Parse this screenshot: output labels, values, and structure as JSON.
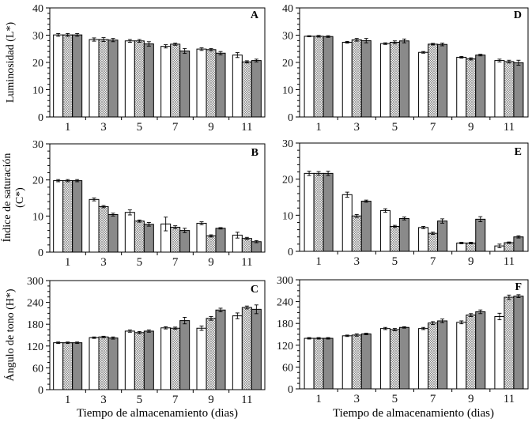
{
  "figure": {
    "x_axis_title": "Tiempo de almacenamiento (dias)",
    "colors": {
      "background": "#ffffff",
      "axis": "#000000",
      "white_bar_fill": "#ffffff",
      "gray_bar_fill": "#8a8a8a",
      "hatch_line": "#777777",
      "bar_border": "#000000"
    },
    "bar_styles": [
      {
        "name": "white-bar"
      },
      {
        "name": "hatched-bar"
      },
      {
        "name": "gray-bar"
      }
    ]
  },
  "chart_data": [
    {
      "type": "bar",
      "panel_label": "A",
      "ylabel_lines": [
        "Luminosidad (L*)"
      ],
      "xlabel": "",
      "ylim": [
        0,
        40
      ],
      "yticks": [
        0,
        10,
        20,
        30,
        40
      ],
      "minor_step": 2,
      "categories": [
        "1",
        "3",
        "5",
        "7",
        "9",
        "11"
      ],
      "series": [
        {
          "name": "white",
          "values": [
            30.1,
            28.4,
            27.9,
            25.9,
            24.9,
            22.7
          ],
          "errors": [
            0.5,
            0.6,
            0.5,
            0.6,
            0.5,
            0.9
          ]
        },
        {
          "name": "hatched",
          "values": [
            30.1,
            28.4,
            27.9,
            26.7,
            24.7,
            20.2
          ],
          "errors": [
            0.5,
            0.7,
            0.5,
            0.4,
            0.4,
            0.4
          ]
        },
        {
          "name": "gray",
          "values": [
            30.1,
            28.2,
            26.8,
            24.2,
            23.4,
            20.7
          ],
          "errors": [
            0.5,
            0.6,
            0.8,
            0.9,
            0.6,
            0.5
          ]
        }
      ]
    },
    {
      "type": "bar",
      "panel_label": "B",
      "ylabel_lines": [
        "Índice de saturación",
        "(C*)"
      ],
      "xlabel": "",
      "ylim": [
        0,
        30
      ],
      "yticks": [
        0,
        10,
        20,
        30
      ],
      "minor_step": 2,
      "categories": [
        "1",
        "3",
        "5",
        "7",
        "9",
        "11"
      ],
      "series": [
        {
          "name": "white",
          "values": [
            19.8,
            14.6,
            11.0,
            7.8,
            8.0,
            4.7
          ],
          "errors": [
            0.3,
            0.4,
            0.7,
            1.9,
            0.4,
            0.8
          ]
        },
        {
          "name": "hatched",
          "values": [
            19.8,
            12.6,
            8.6,
            6.9,
            4.5,
            3.8
          ],
          "errors": [
            0.3,
            0.3,
            0.3,
            0.4,
            0.3,
            0.3
          ]
        },
        {
          "name": "gray",
          "values": [
            19.8,
            10.4,
            7.7,
            6.0,
            6.6,
            2.9
          ],
          "errors": [
            0.3,
            0.4,
            0.5,
            0.6,
            0.2,
            0.3
          ]
        }
      ]
    },
    {
      "type": "bar",
      "panel_label": "C",
      "ylabel_lines": [
        "Ángulo de tono (H*)"
      ],
      "xlabel": "Tiempo de almacenamiento (dias)",
      "ylim": [
        0,
        300
      ],
      "yticks": [
        0,
        60,
        120,
        180,
        240,
        300
      ],
      "minor_step": 15,
      "categories": [
        "1",
        "3",
        "5",
        "7",
        "9",
        "11"
      ],
      "series": [
        {
          "name": "white",
          "values": [
            129,
            143,
            161,
            170,
            169,
            203
          ],
          "errors": [
            2,
            2,
            3,
            3,
            6,
            8
          ]
        },
        {
          "name": "hatched",
          "values": [
            129,
            145,
            157,
            169,
            196,
            226
          ],
          "errors": [
            2,
            2,
            3,
            3,
            5,
            4
          ]
        },
        {
          "name": "gray",
          "values": [
            129,
            142,
            161,
            190,
            219,
            221
          ],
          "errors": [
            2,
            3,
            3,
            9,
            5,
            12
          ]
        }
      ]
    },
    {
      "type": "bar",
      "panel_label": "D",
      "ylabel_lines": [],
      "xlabel": "",
      "ylim": [
        0,
        40
      ],
      "yticks": [
        0,
        10,
        20,
        30,
        40
      ],
      "minor_step": 2,
      "categories": [
        "1",
        "3",
        "5",
        "7",
        "9",
        "11"
      ],
      "series": [
        {
          "name": "white",
          "values": [
            29.6,
            27.4,
            26.9,
            23.7,
            21.9,
            20.7
          ],
          "errors": [
            0.2,
            0.3,
            0.3,
            0.3,
            0.3,
            0.5
          ]
        },
        {
          "name": "hatched",
          "values": [
            29.6,
            28.3,
            27.4,
            26.7,
            21.3,
            20.3
          ],
          "errors": [
            0.3,
            0.5,
            0.5,
            0.3,
            0.4,
            0.5
          ]
        },
        {
          "name": "gray",
          "values": [
            29.5,
            28.0,
            27.9,
            26.6,
            22.7,
            19.9
          ],
          "errors": [
            0.3,
            0.8,
            0.7,
            0.5,
            0.3,
            0.9
          ]
        }
      ]
    },
    {
      "type": "bar",
      "panel_label": "E",
      "ylabel_lines": [],
      "xlabel": "",
      "ylim": [
        0,
        30
      ],
      "yticks": [
        0,
        10,
        20,
        30
      ],
      "minor_step": 2,
      "categories": [
        "1",
        "3",
        "5",
        "7",
        "9",
        "11"
      ],
      "series": [
        {
          "name": "white",
          "values": [
            21.6,
            15.7,
            11.3,
            6.6,
            2.3,
            1.5
          ],
          "errors": [
            0.6,
            0.7,
            0.5,
            0.3,
            0.2,
            0.5
          ]
        },
        {
          "name": "hatched",
          "values": [
            21.6,
            9.8,
            6.9,
            5.0,
            2.3,
            2.4
          ],
          "errors": [
            0.5,
            0.4,
            0.3,
            0.3,
            0.2,
            0.2
          ]
        },
        {
          "name": "gray",
          "values": [
            21.6,
            13.9,
            9.1,
            8.4,
            8.9,
            4.0
          ],
          "errors": [
            0.6,
            0.3,
            0.4,
            0.6,
            0.7,
            0.3
          ]
        }
      ]
    },
    {
      "type": "bar",
      "panel_label": "F",
      "ylabel_lines": [],
      "xlabel": "Tiempo de almacenamiento (dias)",
      "ylim": [
        0,
        300
      ],
      "yticks": [
        0,
        60,
        120,
        180,
        240,
        300
      ],
      "minor_step": 15,
      "categories": [
        "1",
        "3",
        "5",
        "7",
        "9",
        "11"
      ],
      "series": [
        {
          "name": "white",
          "values": [
            139,
            146,
            166,
            166,
            183,
            199
          ],
          "errors": [
            2,
            2,
            3,
            3,
            4,
            9
          ]
        },
        {
          "name": "hatched",
          "values": [
            139,
            148,
            163,
            181,
            203,
            252
          ],
          "errors": [
            2,
            3,
            3,
            4,
            4,
            6
          ]
        },
        {
          "name": "gray",
          "values": [
            139,
            151,
            169,
            187,
            212,
            255
          ],
          "errors": [
            2,
            2,
            2,
            5,
            5,
            4
          ]
        }
      ]
    }
  ]
}
